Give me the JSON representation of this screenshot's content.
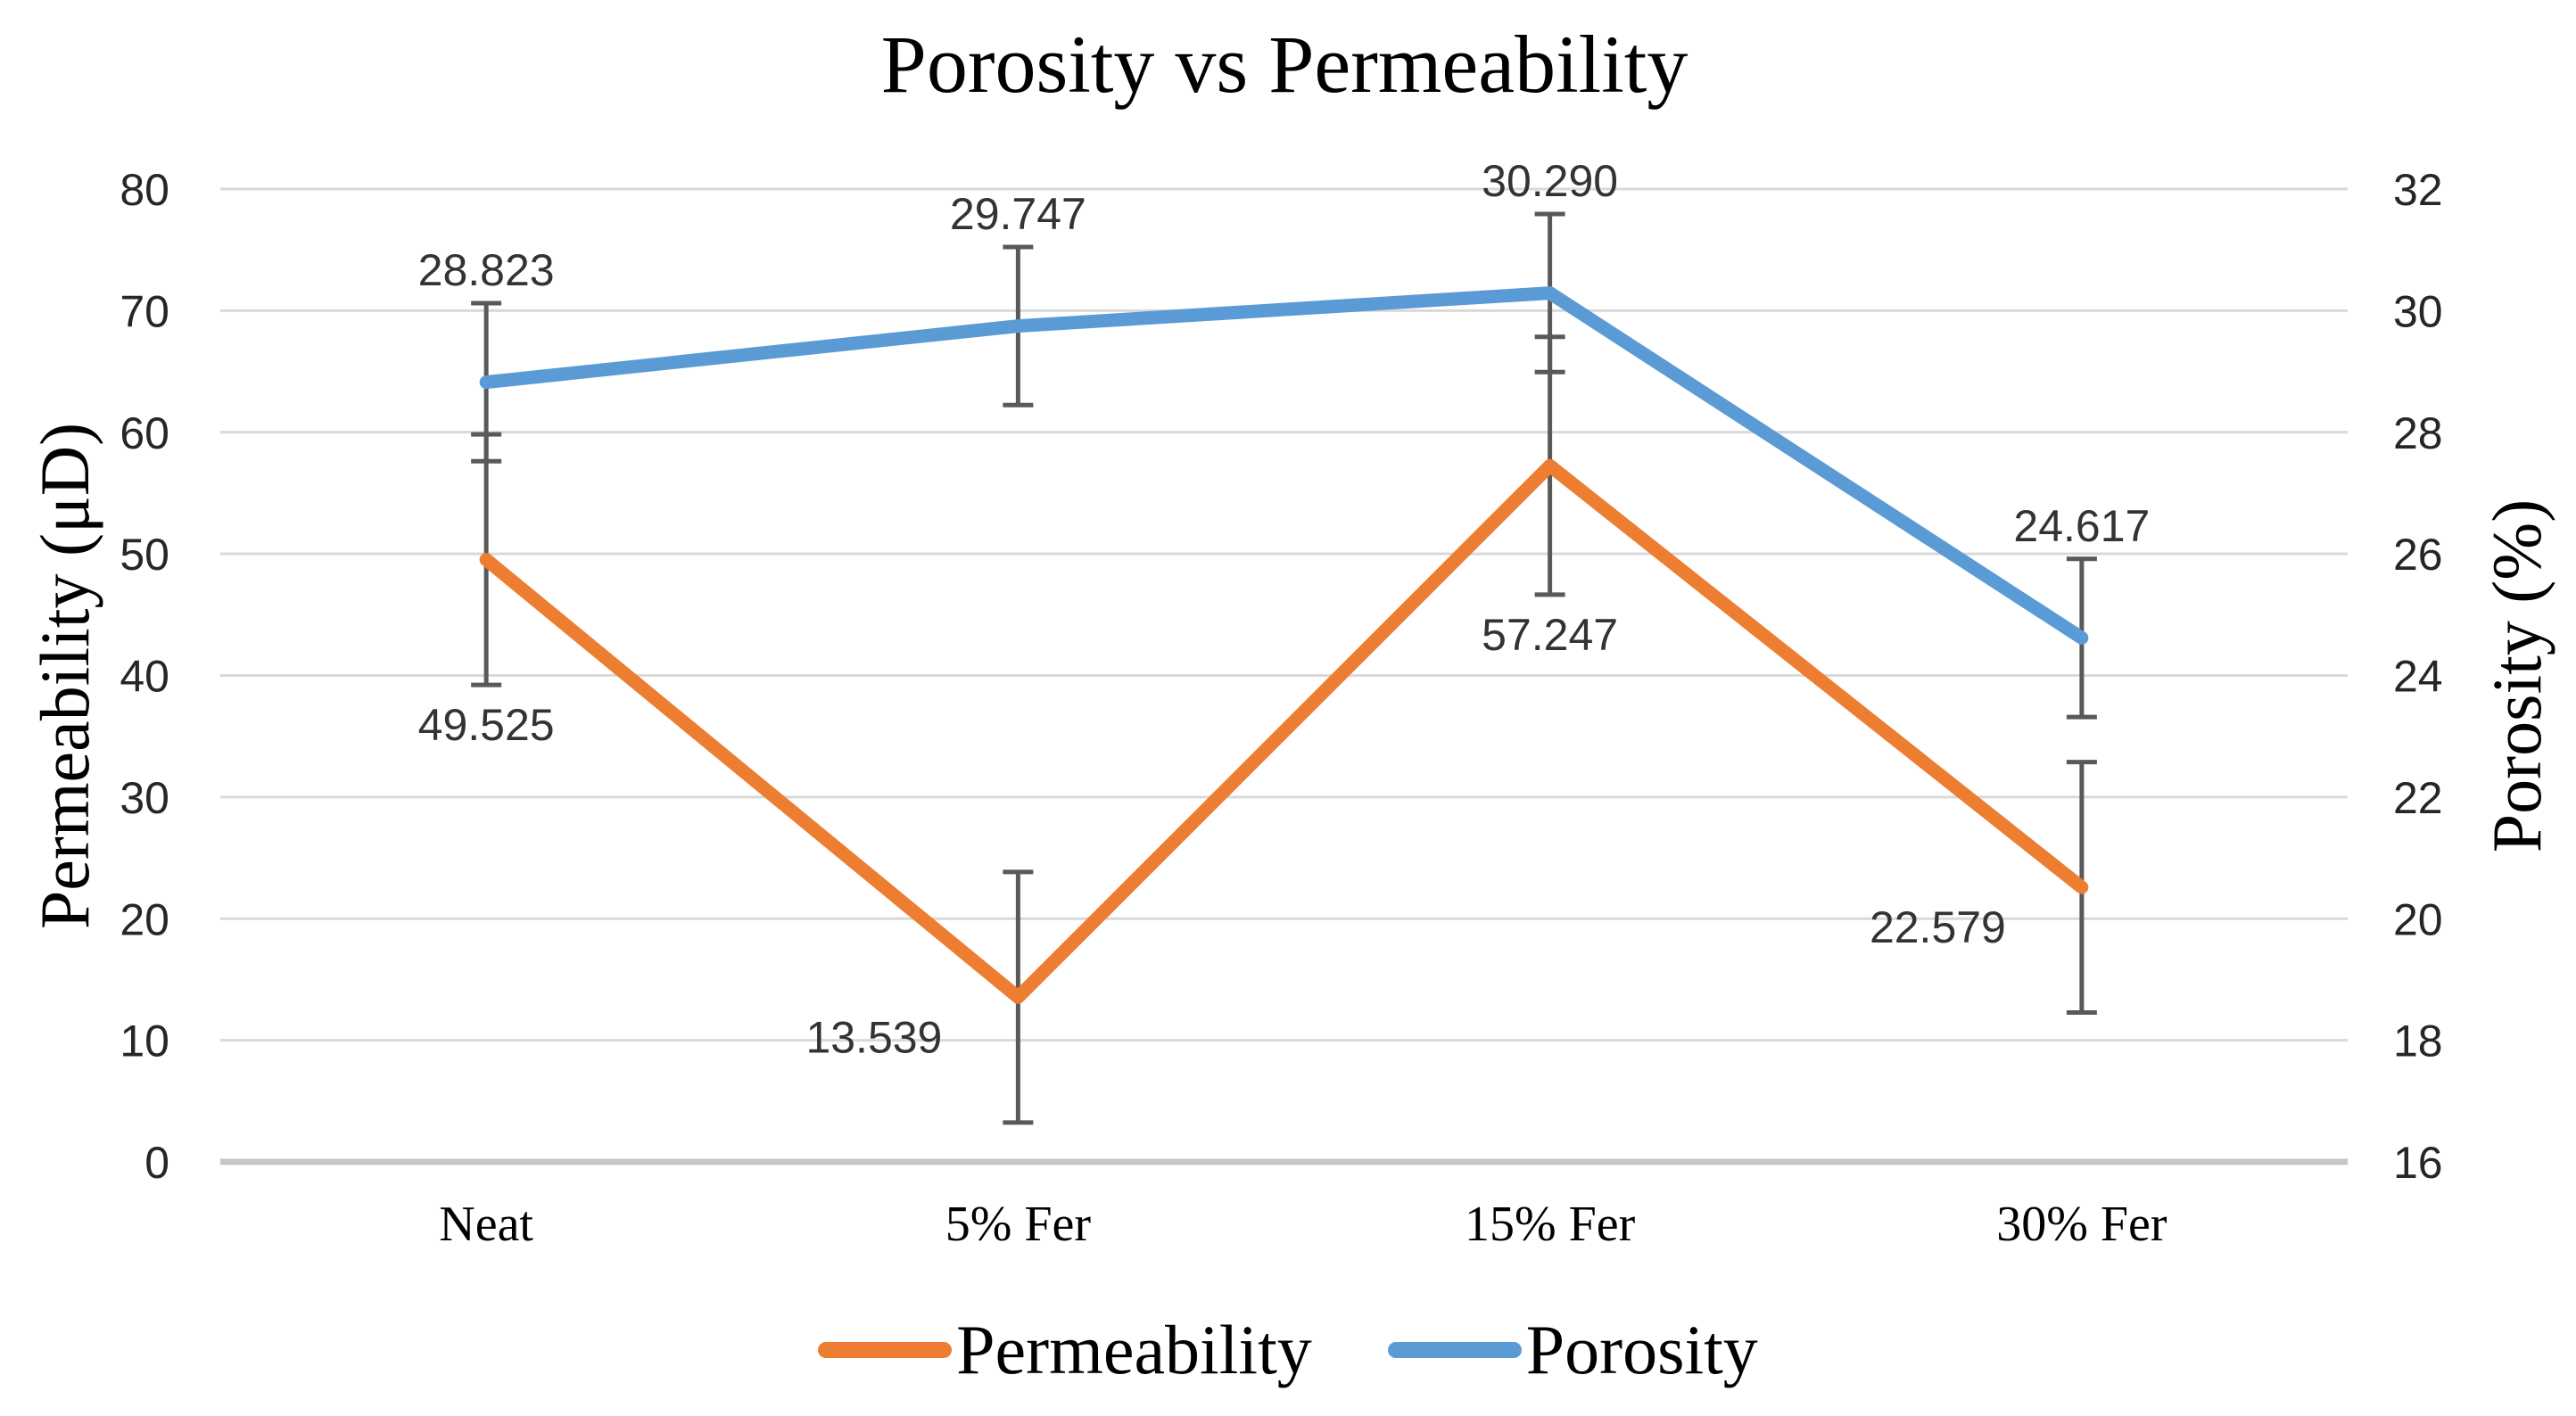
{
  "chart_data": {
    "type": "line",
    "title": "Porosity vs Permeability",
    "categories": [
      "Neat",
      "5% Fer",
      "15% Fer",
      "30% Fer"
    ],
    "series": [
      {
        "name": "Permeability",
        "axis": "left",
        "color": "#ED7D31",
        "values": [
          49.525,
          13.539,
          57.247,
          22.579
        ],
        "labels": [
          "49.525",
          "13.539",
          "57.247",
          "22.579"
        ],
        "error": [
          10.3,
          10.3,
          10.6,
          10.3
        ],
        "label_pos": [
          "below-error",
          "left",
          "below-error",
          "left"
        ]
      },
      {
        "name": "Porosity",
        "axis": "right",
        "color": "#5B9BD5",
        "values": [
          28.823,
          29.747,
          30.29,
          24.617
        ],
        "labels": [
          "28.823",
          "29.747",
          "30.290",
          "24.617"
        ],
        "error": [
          1.3,
          1.3,
          1.3,
          1.3
        ],
        "label_pos": [
          "above-error",
          "above-error",
          "above-error",
          "above-error"
        ]
      }
    ],
    "axes": {
      "left": {
        "label": "Permeability (μD)",
        "min": 0,
        "max": 80,
        "step": 10,
        "ticks": [
          "0",
          "10",
          "20",
          "30",
          "40",
          "50",
          "60",
          "70",
          "80"
        ]
      },
      "right": {
        "label": "Porosity (%)",
        "min": 16,
        "max": 32,
        "step": 2,
        "ticks": [
          "16",
          "18",
          "20",
          "22",
          "24",
          "26",
          "28",
          "30",
          "32"
        ]
      }
    },
    "legend": {
      "position": "bottom",
      "entries": [
        "Permeability",
        "Porosity"
      ]
    },
    "grid": true,
    "colors": {
      "gridline": "#D9D9D9",
      "axisline": "#C6C6C6",
      "error_bar": "#595959",
      "text": "#000000"
    }
  }
}
